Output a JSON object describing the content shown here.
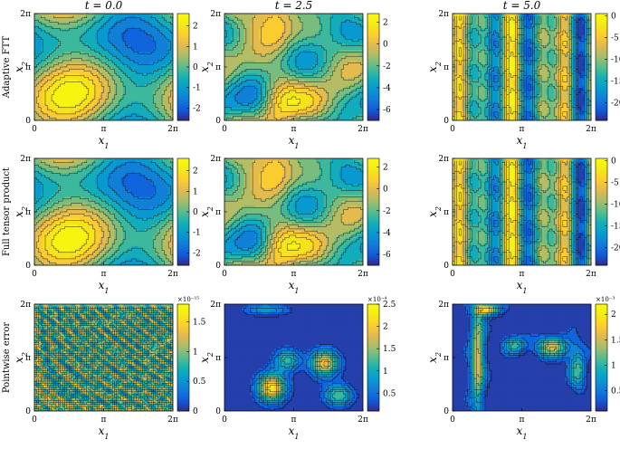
{
  "chart_data": {
    "type": "contour",
    "columns": [
      {
        "title": "t = 0.0"
      },
      {
        "title": "t = 2.5"
      },
      {
        "title": "t = 5.0"
      }
    ],
    "rows": [
      {
        "label": "Adaptive FTT"
      },
      {
        "label": "Full tensor product"
      },
      {
        "label": "Pointwise error"
      }
    ],
    "x_ticks": [
      "0",
      "π",
      "2π"
    ],
    "y_ticks": [
      "0",
      "π",
      "2π"
    ],
    "xlabel": "x1",
    "ylabel": "x2",
    "xlim": [
      0,
      6.283
    ],
    "ylim": [
      0,
      6.283
    ],
    "panels": [
      {
        "row": 0,
        "col": 0,
        "colorbar": {
          "ticks": [
            2,
            1,
            0,
            -1,
            -2
          ],
          "range": [
            -2.6,
            2.6
          ],
          "multiplier": ""
        }
      },
      {
        "row": 0,
        "col": 1,
        "colorbar": {
          "ticks": [
            2,
            0,
            -2,
            -4,
            -6
          ],
          "range": [
            -7,
            2.8
          ],
          "multiplier": ""
        }
      },
      {
        "row": 0,
        "col": 2,
        "colorbar": {
          "ticks": [
            0,
            -5,
            -10,
            -15,
            -20
          ],
          "range": [
            -24,
            0.5
          ],
          "multiplier": ""
        }
      },
      {
        "row": 1,
        "col": 0,
        "colorbar": {
          "ticks": [
            2,
            1,
            0,
            -1,
            -2
          ],
          "range": [
            -2.6,
            2.6
          ],
          "multiplier": ""
        }
      },
      {
        "row": 1,
        "col": 1,
        "colorbar": {
          "ticks": [
            2,
            0,
            -2,
            -4,
            -6
          ],
          "range": [
            -7,
            2.8
          ],
          "multiplier": ""
        }
      },
      {
        "row": 1,
        "col": 2,
        "colorbar": {
          "ticks": [
            0,
            -5,
            -10,
            -15,
            -20
          ],
          "range": [
            -24,
            0.5
          ],
          "multiplier": ""
        }
      },
      {
        "row": 2,
        "col": 0,
        "colorbar": {
          "ticks": [
            1.5,
            1,
            0.5,
            0
          ],
          "range": [
            0,
            1.8
          ],
          "multiplier": "×10⁻¹⁵"
        }
      },
      {
        "row": 2,
        "col": 1,
        "colorbar": {
          "ticks": [
            2.5,
            2,
            1.5,
            1,
            0.5
          ],
          "range": [
            0.1,
            2.5
          ],
          "multiplier": "×10⁻⁴"
        }
      },
      {
        "row": 2,
        "col": 2,
        "colorbar": {
          "ticks": [
            2,
            1.5,
            1,
            0.5
          ],
          "range": [
            0.1,
            2.2
          ],
          "multiplier": "×10⁻³"
        }
      }
    ]
  }
}
